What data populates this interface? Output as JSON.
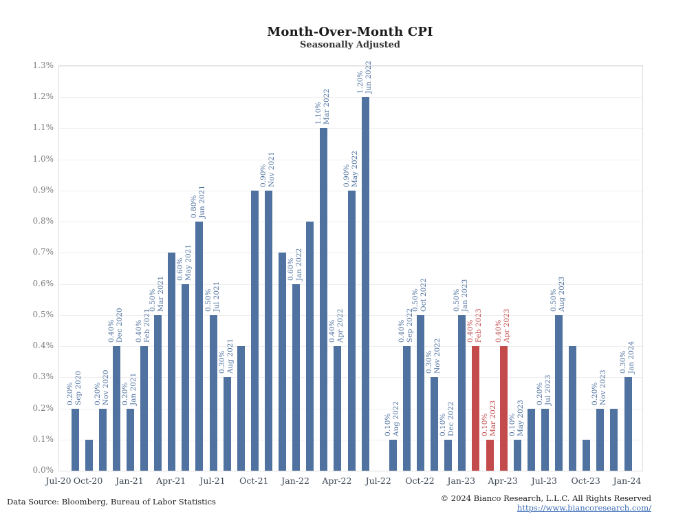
{
  "title": "Month-Over-Month CPI",
  "subtitle": "Seasonally Adjusted",
  "footer": {
    "source": "Data Source: Bloomberg, Bureau of Labor Statistics",
    "copyright": "© 2024 Bianco Research, L.L.C. All Rights Reserved",
    "link": "https://www.biancoresearch.com/"
  },
  "colors": {
    "bar_blue": "#4f72a0",
    "bar_red": "#c44b4c",
    "grid": "#efefef",
    "plot_border": "#dcdcdc",
    "y_tick_text": "#7f7f7f",
    "x_tick_text": "#3d4856",
    "link_blue": "#3b6cb5"
  },
  "chart_data": {
    "type": "bar",
    "title": "Month-Over-Month CPI",
    "subtitle": "Seasonally Adjusted",
    "xlabel": "",
    "ylabel": "",
    "ylim": [
      0.0,
      1.3
    ],
    "grid": "horizontal",
    "legend": "none",
    "value_unit": "% month-over-month, seasonally adjusted",
    "y_ticks": [
      "0.0%",
      "0.1%",
      "0.2%",
      "0.3%",
      "0.4%",
      "0.5%",
      "0.6%",
      "0.7%",
      "0.8%",
      "0.9%",
      "1.0%",
      "1.1%",
      "1.2%",
      "1.3%"
    ],
    "x_ticks": [
      {
        "label": "Jul-20",
        "month_index": -2
      },
      {
        "label": "Oct-20",
        "month_index": 1
      },
      {
        "label": "Jan-21",
        "month_index": 4
      },
      {
        "label": "Apr-21",
        "month_index": 7
      },
      {
        "label": "Jul-21",
        "month_index": 10
      },
      {
        "label": "Oct-21",
        "month_index": 13
      },
      {
        "label": "Jan-22",
        "month_index": 16
      },
      {
        "label": "Apr-22",
        "month_index": 19
      },
      {
        "label": "Jul-22",
        "month_index": 22
      },
      {
        "label": "Oct-22",
        "month_index": 25
      },
      {
        "label": "Jan-23",
        "month_index": 28
      },
      {
        "label": "Apr-23",
        "month_index": 31
      },
      {
        "label": "Jul-23",
        "month_index": 34
      },
      {
        "label": "Oct-23",
        "month_index": 37
      },
      {
        "label": "Jan-24",
        "month_index": 40
      }
    ],
    "points": [
      {
        "month": "Sep 2020",
        "value": 0.2,
        "value_label": "0.20%",
        "labeled": true,
        "highlight": false
      },
      {
        "month": "Oct 2020",
        "value": 0.1,
        "value_label": "0.10%",
        "labeled": false,
        "highlight": false
      },
      {
        "month": "Nov 2020",
        "value": 0.2,
        "value_label": "0.20%",
        "labeled": true,
        "highlight": false
      },
      {
        "month": "Dec 2020",
        "value": 0.4,
        "value_label": "0.40%",
        "labeled": true,
        "highlight": false
      },
      {
        "month": "Jan 2021",
        "value": 0.2,
        "value_label": "0.20%",
        "labeled": true,
        "highlight": false
      },
      {
        "month": "Feb 2021",
        "value": 0.4,
        "value_label": "0.40%",
        "labeled": true,
        "highlight": false
      },
      {
        "month": "Mar 2021",
        "value": 0.5,
        "value_label": "0.50%",
        "labeled": true,
        "highlight": false
      },
      {
        "month": "Apr 2021",
        "value": 0.7,
        "value_label": "0.70%",
        "labeled": false,
        "highlight": false
      },
      {
        "month": "May 2021",
        "value": 0.6,
        "value_label": "0.60%",
        "labeled": true,
        "highlight": false
      },
      {
        "month": "Jun 2021",
        "value": 0.8,
        "value_label": "0.80%",
        "labeled": true,
        "highlight": false
      },
      {
        "month": "Jul 2021",
        "value": 0.5,
        "value_label": "0.50%",
        "labeled": true,
        "highlight": false
      },
      {
        "month": "Aug 2021",
        "value": 0.3,
        "value_label": "0.30%",
        "labeled": true,
        "highlight": false
      },
      {
        "month": "Sep 2021",
        "value": 0.4,
        "value_label": "0.40%",
        "labeled": false,
        "highlight": false
      },
      {
        "month": "Oct 2021",
        "value": 0.9,
        "value_label": "0.90%",
        "labeled": false,
        "highlight": false
      },
      {
        "month": "Nov 2021",
        "value": 0.9,
        "value_label": "0.90%",
        "labeled": true,
        "highlight": false
      },
      {
        "month": "Dec 2021",
        "value": 0.7,
        "value_label": "0.70%",
        "labeled": false,
        "highlight": false
      },
      {
        "month": "Jan 2022",
        "value": 0.6,
        "value_label": "0.60%",
        "labeled": true,
        "highlight": false
      },
      {
        "month": "Feb 2022",
        "value": 0.8,
        "value_label": "0.80%",
        "labeled": false,
        "highlight": false
      },
      {
        "month": "Mar 2022",
        "value": 1.1,
        "value_label": "1.10%",
        "labeled": true,
        "highlight": false
      },
      {
        "month": "Apr 2022",
        "value": 0.4,
        "value_label": "0.40%",
        "labeled": true,
        "highlight": false
      },
      {
        "month": "May 2022",
        "value": 0.9,
        "value_label": "0.90%",
        "labeled": true,
        "highlight": false
      },
      {
        "month": "Jun 2022",
        "value": 1.2,
        "value_label": "1.20%",
        "labeled": true,
        "highlight": false
      },
      {
        "month": "Jul 2022",
        "value": 0.0,
        "value_label": "0.00%",
        "labeled": false,
        "highlight": false
      },
      {
        "month": "Aug 2022",
        "value": 0.1,
        "value_label": "0.10%",
        "labeled": true,
        "highlight": false
      },
      {
        "month": "Sep 2022",
        "value": 0.4,
        "value_label": "0.40%",
        "labeled": true,
        "highlight": false
      },
      {
        "month": "Oct 2022",
        "value": 0.5,
        "value_label": "0.50%",
        "labeled": true,
        "highlight": false
      },
      {
        "month": "Nov 2022",
        "value": 0.3,
        "value_label": "0.30%",
        "labeled": true,
        "highlight": false
      },
      {
        "month": "Dec 2022",
        "value": 0.1,
        "value_label": "0.10%",
        "labeled": true,
        "highlight": false
      },
      {
        "month": "Jan 2023",
        "value": 0.5,
        "value_label": "0.50%",
        "labeled": true,
        "highlight": false
      },
      {
        "month": "Feb 2023",
        "value": 0.4,
        "value_label": "0.40%",
        "labeled": true,
        "highlight": true
      },
      {
        "month": "Mar 2023",
        "value": 0.1,
        "value_label": "0.10%",
        "labeled": true,
        "highlight": true
      },
      {
        "month": "Apr 2023",
        "value": 0.4,
        "value_label": "0.40%",
        "labeled": true,
        "highlight": true
      },
      {
        "month": "May 2023",
        "value": 0.1,
        "value_label": "0.10%",
        "labeled": true,
        "highlight": false
      },
      {
        "month": "Jun 2023",
        "value": 0.2,
        "value_label": "0.20%",
        "labeled": false,
        "highlight": false
      },
      {
        "month": "Jul 2023",
        "value": 0.2,
        "value_label": "0.20%",
        "labeled": true,
        "highlight": false
      },
      {
        "month": "Aug 2023",
        "value": 0.5,
        "value_label": "0.50%",
        "labeled": true,
        "highlight": false
      },
      {
        "month": "Sep 2023",
        "value": 0.4,
        "value_label": "0.40%",
        "labeled": false,
        "highlight": false
      },
      {
        "month": "Oct 2023",
        "value": 0.1,
        "value_label": "0.10%",
        "labeled": false,
        "highlight": false
      },
      {
        "month": "Nov 2023",
        "value": 0.2,
        "value_label": "0.20%",
        "labeled": true,
        "highlight": false
      },
      {
        "month": "Dec 2023",
        "value": 0.2,
        "value_label": "0.20%",
        "labeled": false,
        "highlight": false
      },
      {
        "month": "Jan 2024",
        "value": 0.3,
        "value_label": "0.30%",
        "labeled": true,
        "highlight": false
      }
    ]
  }
}
